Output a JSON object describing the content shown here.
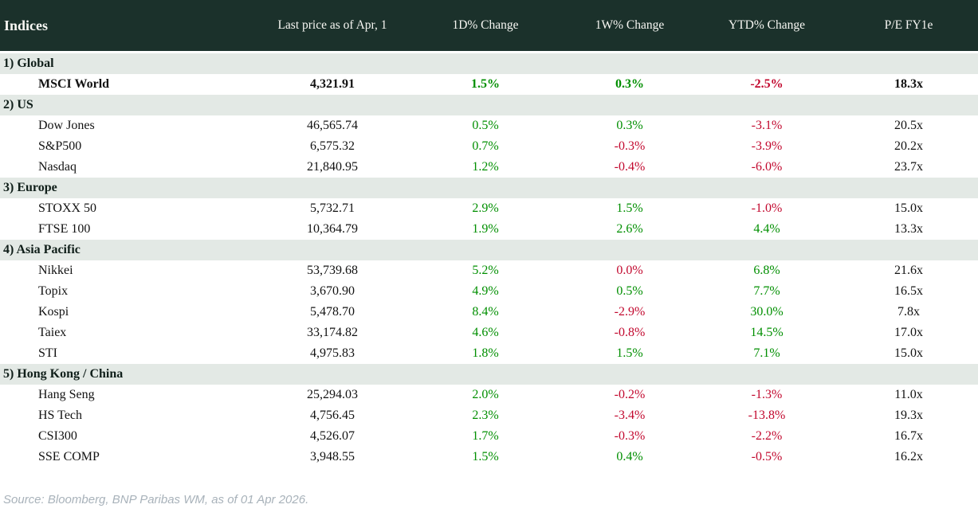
{
  "colors": {
    "header_bg": "#1b312b",
    "header_text": "#f7f7f3",
    "section_bg": "#e3e9e5",
    "text": "#121212",
    "positive": "#008f00",
    "negative": "#c2082e",
    "source_text": "#a8b2ba"
  },
  "header": {
    "columns": [
      "Indices",
      "Last price as of Apr, 1",
      "1D% Change",
      "1W% Change",
      "YTD% Change",
      "P/E FY1e"
    ]
  },
  "footer": {
    "source_note": "Source: Bloomberg, BNP Paribas WM, as of 01 Apr 2026."
  },
  "chart_data": {
    "type": "table",
    "title": "Indices",
    "columns": [
      "Indices",
      "Last price as of Apr, 1",
      "1D% Change",
      "1W% Change",
      "YTD% Change",
      "P/E FY1e"
    ],
    "value_column_names": [
      "last-price",
      "change-1d",
      "change-1w",
      "change-ytd",
      "pe-ratio"
    ],
    "sections": [
      {
        "label": "1) Global",
        "rows": [
          {
            "name": "MSCI World",
            "emphasis": true,
            "values": [
              "4,321.91",
              "1.5%",
              "0.3%",
              "-2.5%",
              "18.3x"
            ],
            "tones": [
              "neutral",
              "up",
              "up",
              "down",
              "neutral"
            ]
          }
        ]
      },
      {
        "label": "2) US",
        "rows": [
          {
            "name": "Dow Jones",
            "emphasis": false,
            "values": [
              "46,565.74",
              "0.5%",
              "0.3%",
              "-3.1%",
              "20.5x"
            ],
            "tones": [
              "neutral",
              "up",
              "up",
              "down",
              "neutral"
            ]
          },
          {
            "name": "S&P500",
            "emphasis": false,
            "values": [
              "6,575.32",
              "0.7%",
              "-0.3%",
              "-3.9%",
              "20.2x"
            ],
            "tones": [
              "neutral",
              "up",
              "down",
              "down",
              "neutral"
            ]
          },
          {
            "name": "Nasdaq",
            "emphasis": false,
            "values": [
              "21,840.95",
              "1.2%",
              "-0.4%",
              "-6.0%",
              "23.7x"
            ],
            "tones": [
              "neutral",
              "up",
              "down",
              "down",
              "neutral"
            ]
          }
        ]
      },
      {
        "label": "3) Europe",
        "rows": [
          {
            "name": "STOXX 50",
            "emphasis": false,
            "values": [
              "5,732.71",
              "2.9%",
              "1.5%",
              "-1.0%",
              "15.0x"
            ],
            "tones": [
              "neutral",
              "up",
              "up",
              "down",
              "neutral"
            ]
          },
          {
            "name": "FTSE 100",
            "emphasis": false,
            "values": [
              "10,364.79",
              "1.9%",
              "2.6%",
              "4.4%",
              "13.3x"
            ],
            "tones": [
              "neutral",
              "up",
              "up",
              "up",
              "neutral"
            ]
          }
        ]
      },
      {
        "label": "4) Asia Pacific",
        "rows": [
          {
            "name": "Nikkei",
            "emphasis": false,
            "values": [
              "53,739.68",
              "5.2%",
              "0.0%",
              "6.8%",
              "21.6x"
            ],
            "tones": [
              "neutral",
              "up",
              "down",
              "up",
              "neutral"
            ]
          },
          {
            "name": "Topix",
            "emphasis": false,
            "values": [
              "3,670.90",
              "4.9%",
              "0.5%",
              "7.7%",
              "16.5x"
            ],
            "tones": [
              "neutral",
              "up",
              "up",
              "up",
              "neutral"
            ]
          },
          {
            "name": "Kospi",
            "emphasis": false,
            "values": [
              "5,478.70",
              "8.4%",
              "-2.9%",
              "30.0%",
              "7.8x"
            ],
            "tones": [
              "neutral",
              "up",
              "down",
              "up",
              "neutral"
            ]
          },
          {
            "name": "Taiex",
            "emphasis": false,
            "values": [
              "33,174.82",
              "4.6%",
              "-0.8%",
              "14.5%",
              "17.0x"
            ],
            "tones": [
              "neutral",
              "up",
              "down",
              "up",
              "neutral"
            ]
          },
          {
            "name": "STI",
            "emphasis": false,
            "values": [
              "4,975.83",
              "1.8%",
              "1.5%",
              "7.1%",
              "15.0x"
            ],
            "tones": [
              "neutral",
              "up",
              "up",
              "up",
              "neutral"
            ]
          }
        ]
      },
      {
        "label": "5) Hong Kong / China",
        "rows": [
          {
            "name": "Hang Seng",
            "emphasis": false,
            "values": [
              "25,294.03",
              "2.0%",
              "-0.2%",
              "-1.3%",
              "11.0x"
            ],
            "tones": [
              "neutral",
              "up",
              "down",
              "down",
              "neutral"
            ]
          },
          {
            "name": "HS Tech",
            "emphasis": false,
            "values": [
              "4,756.45",
              "2.3%",
              "-3.4%",
              "-13.8%",
              "19.3x"
            ],
            "tones": [
              "neutral",
              "up",
              "down",
              "down",
              "neutral"
            ]
          },
          {
            "name": "CSI300",
            "emphasis": false,
            "values": [
              "4,526.07",
              "1.7%",
              "-0.3%",
              "-2.2%",
              "16.7x"
            ],
            "tones": [
              "neutral",
              "up",
              "down",
              "down",
              "neutral"
            ]
          },
          {
            "name": "SSE COMP",
            "emphasis": false,
            "values": [
              "3,948.55",
              "1.5%",
              "0.4%",
              "-0.5%",
              "16.2x"
            ],
            "tones": [
              "neutral",
              "up",
              "up",
              "down",
              "neutral"
            ]
          }
        ]
      }
    ]
  }
}
